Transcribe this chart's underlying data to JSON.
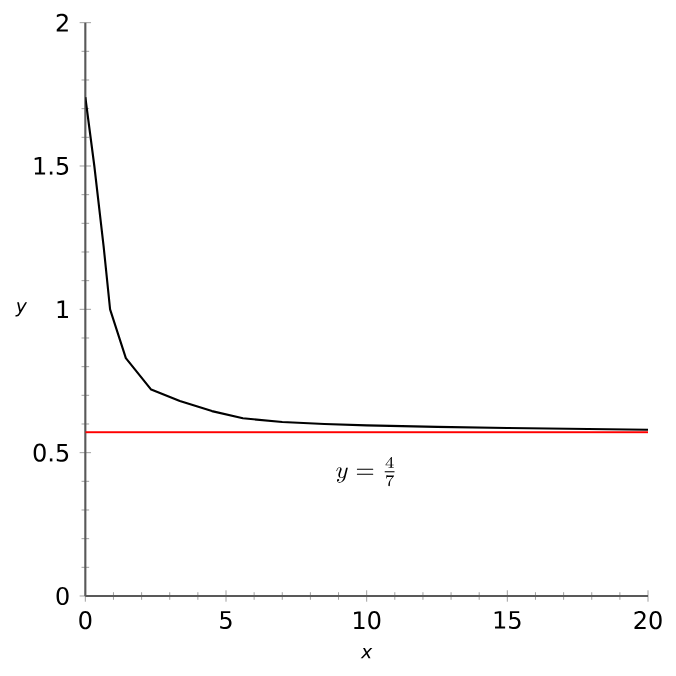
{
  "chart_data": {
    "type": "line",
    "xlabel": "x",
    "ylabel": "y",
    "x": [
      0,
      0.32,
      0.65,
      0.88,
      1.44,
      2.34,
      3.36,
      4.5,
      5.6,
      7,
      8.5,
      10,
      12.5,
      15,
      17.5,
      20
    ],
    "series": [
      {
        "color": "#000000",
        "values": [
          1.74,
          1.5,
          1.22,
          1.0,
          0.83,
          0.72,
          0.68,
          0.645,
          0.62,
          0.607,
          0.6,
          0.595,
          0.59,
          0.586,
          0.583,
          0.58
        ]
      }
    ],
    "xlim": [
      0,
      20
    ],
    "ylim": [
      0,
      2
    ],
    "xticks": [
      0,
      5,
      10,
      15,
      20
    ],
    "yticks": [
      0,
      0.5,
      1,
      1.5,
      2
    ],
    "ref_lines": [
      {
        "axis": "y",
        "value": 0.5714,
        "label": "y=\\frac{4}{7}",
        "color": "#ff0000"
      }
    ],
    "grid": false,
    "marker": "none",
    "line_style": "solid"
  }
}
